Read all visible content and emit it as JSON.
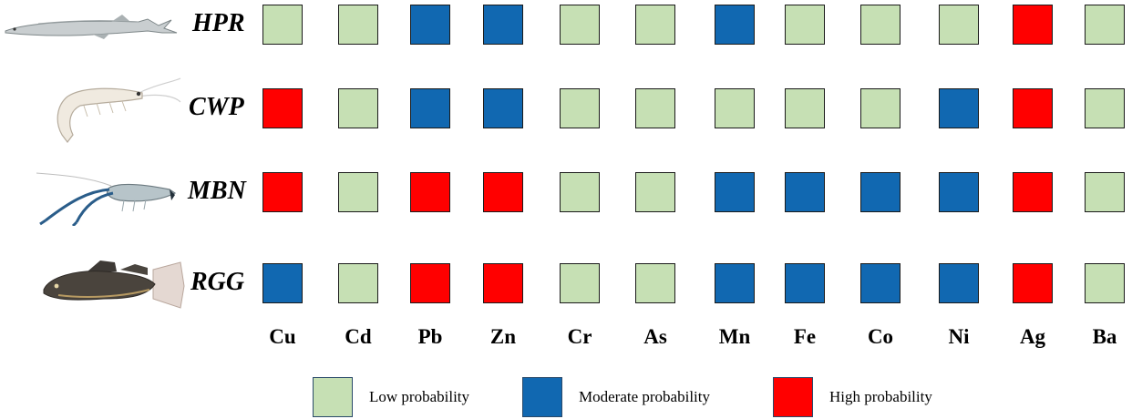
{
  "chart_data": {
    "type": "heatmap",
    "rows": [
      "HPR",
      "CWP",
      "MBN",
      "RGG"
    ],
    "columns": [
      "Cu",
      "Cd",
      "Pb",
      "Zn",
      "Cr",
      "As",
      "Mn",
      "Fe",
      "Co",
      "Ni",
      "Ag",
      "Ba"
    ],
    "values": [
      [
        "Low",
        "Low",
        "Moderate",
        "Moderate",
        "Low",
        "Low",
        "Moderate",
        "Low",
        "Low",
        "Low",
        "High",
        "Low"
      ],
      [
        "High",
        "Low",
        "Moderate",
        "Moderate",
        "Low",
        "Low",
        "Low",
        "Low",
        "Low",
        "Moderate",
        "High",
        "Low"
      ],
      [
        "High",
        "Low",
        "High",
        "High",
        "Low",
        "Low",
        "Moderate",
        "Moderate",
        "Moderate",
        "Moderate",
        "High",
        "Low"
      ],
      [
        "Moderate",
        "Low",
        "High",
        "High",
        "Low",
        "Low",
        "Moderate",
        "Moderate",
        "Moderate",
        "Moderate",
        "High",
        "Low"
      ]
    ],
    "categories": [
      {
        "key": "Low",
        "label": "Low probability",
        "color": "#c6e0b4"
      },
      {
        "key": "Moderate",
        "label": "Moderate probability",
        "color": "#1168b1"
      },
      {
        "key": "High",
        "label": "High probability",
        "color": "#ff0000"
      }
    ],
    "legend_position": "bottom"
  }
}
